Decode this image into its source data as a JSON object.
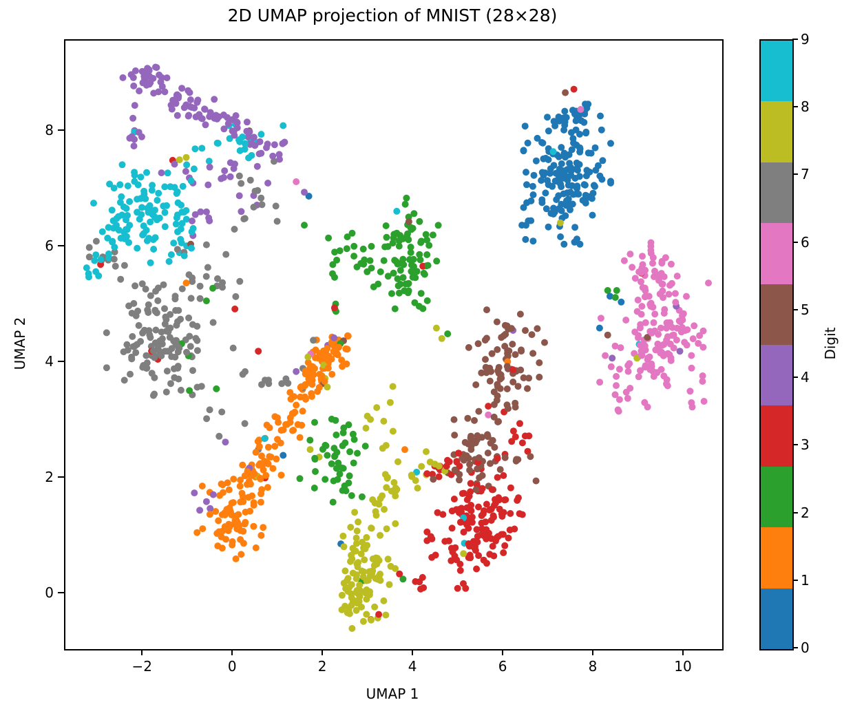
{
  "figure": {
    "title": "2D UMAP projection of MNIST (28×28)",
    "xlabel": "UMAP 1",
    "ylabel": "UMAP 2",
    "colorbar_label": "Digit"
  },
  "chart_data": {
    "type": "scatter",
    "title": "2D UMAP projection of MNIST (28×28)",
    "xlabel": "UMAP 1",
    "ylabel": "UMAP 2",
    "xlim": [
      -3.73,
      10.84
    ],
    "ylim": [
      -0.95,
      9.57
    ],
    "xticks": [
      -2,
      0,
      2,
      4,
      6,
      8,
      10
    ],
    "yticks": [
      0,
      2,
      4,
      6,
      8
    ],
    "grid": false,
    "marker_diameter_px": 10,
    "legend_position": "colorbar-right",
    "colorbar": {
      "label": "Digit",
      "ticks": [
        0,
        1,
        2,
        3,
        4,
        5,
        6,
        7,
        8,
        9
      ],
      "orientation": "vertical",
      "value_range": [
        0,
        9
      ]
    },
    "classes": [
      {
        "digit": 0,
        "color": "#1f77b4"
      },
      {
        "digit": 1,
        "color": "#ff7f0e"
      },
      {
        "digit": 2,
        "color": "#2ca02c"
      },
      {
        "digit": 3,
        "color": "#d62728"
      },
      {
        "digit": 4,
        "color": "#9467bd"
      },
      {
        "digit": 5,
        "color": "#8c564b"
      },
      {
        "digit": 6,
        "color": "#e377c2"
      },
      {
        "digit": 7,
        "color": "#7f7f7f"
      },
      {
        "digit": 8,
        "color": "#bcbd22"
      },
      {
        "digit": 9,
        "color": "#17becf"
      }
    ],
    "clusters": [
      {
        "digit": 4,
        "shape": "line",
        "from": [
          -2.1,
          9.0
        ],
        "to": [
          -0.15,
          8.15
        ],
        "jitter": [
          0.18,
          0.13
        ],
        "n": 65
      },
      {
        "digit": 4,
        "shape": "blob",
        "center": [
          -1.95,
          8.95
        ],
        "sigma": [
          0.22,
          0.1
        ],
        "n": 10
      },
      {
        "digit": 4,
        "shape": "line",
        "from": [
          -2.2,
          8.3
        ],
        "to": [
          -2.15,
          7.65
        ],
        "jitter": [
          0.08,
          0.1
        ],
        "n": 9
      },
      {
        "digit": 4,
        "shape": "line",
        "from": [
          -0.1,
          8.15
        ],
        "to": [
          1.1,
          7.72
        ],
        "jitter": [
          0.16,
          0.12
        ],
        "n": 28
      },
      {
        "digit": 4,
        "shape": "blob",
        "center": [
          -0.45,
          7.3
        ],
        "sigma": [
          0.5,
          0.22
        ],
        "n": 15
      },
      {
        "digit": 4,
        "shape": "blob",
        "center": [
          -0.6,
          6.6
        ],
        "sigma": [
          0.3,
          0.2
        ],
        "n": 6
      },
      {
        "digit": 4,
        "shape": "blob",
        "center": [
          0.55,
          6.95
        ],
        "sigma": [
          0.25,
          0.25
        ],
        "n": 5
      },
      {
        "digit": 9,
        "shape": "blob",
        "center": [
          -2.0,
          6.55
        ],
        "sigma": [
          0.48,
          0.38
        ],
        "n": 100
      },
      {
        "digit": 9,
        "shape": "blob",
        "center": [
          0.15,
          7.82
        ],
        "sigma": [
          0.3,
          0.18
        ],
        "n": 18
      },
      {
        "digit": 9,
        "shape": "blob",
        "center": [
          -0.9,
          7.3
        ],
        "sigma": [
          0.3,
          0.18
        ],
        "n": 9
      },
      {
        "digit": 9,
        "shape": "line",
        "from": [
          -3.25,
          5.6
        ],
        "to": [
          -2.55,
          6.15
        ],
        "jitter": [
          0.1,
          0.12
        ],
        "n": 10
      },
      {
        "digit": 9,
        "shape": "blob",
        "center": [
          -1.2,
          6.0
        ],
        "sigma": [
          0.2,
          0.2
        ],
        "n": 8
      },
      {
        "digit": 7,
        "shape": "blob",
        "center": [
          -1.75,
          4.4
        ],
        "sigma": [
          0.5,
          0.42
        ],
        "n": 115
      },
      {
        "digit": 7,
        "shape": "blob",
        "center": [
          -0.6,
          5.35
        ],
        "sigma": [
          0.38,
          0.3
        ],
        "n": 20
      },
      {
        "digit": 7,
        "shape": "blob",
        "center": [
          -2.8,
          5.8
        ],
        "sigma": [
          0.28,
          0.22
        ],
        "n": 12
      },
      {
        "digit": 7,
        "shape": "line",
        "from": [
          -1.35,
          3.9
        ],
        "to": [
          -0.2,
          2.85
        ],
        "jitter": [
          0.15,
          0.15
        ],
        "n": 9
      },
      {
        "digit": 7,
        "shape": "line",
        "from": [
          -0.35,
          4.15
        ],
        "to": [
          1.6,
          3.45
        ],
        "jitter": [
          0.2,
          0.16
        ],
        "n": 10
      },
      {
        "digit": 7,
        "shape": "blob",
        "center": [
          0.4,
          6.9
        ],
        "sigma": [
          0.3,
          0.42
        ],
        "n": 14
      },
      {
        "digit": 1,
        "shape": "blob",
        "center": [
          -0.08,
          1.3
        ],
        "sigma": [
          0.32,
          0.3
        ],
        "n": 70
      },
      {
        "digit": 1,
        "shape": "line",
        "from": [
          0.2,
          1.75
        ],
        "to": [
          1.3,
          3.2
        ],
        "jitter": [
          0.2,
          0.16
        ],
        "n": 65
      },
      {
        "digit": 1,
        "shape": "line",
        "from": [
          1.3,
          3.25
        ],
        "to": [
          2.35,
          4.35
        ],
        "jitter": [
          0.17,
          0.13
        ],
        "n": 75
      },
      {
        "digit": 1,
        "shape": "blob",
        "center": [
          2.1,
          4.2
        ],
        "sigma": [
          0.25,
          0.16
        ],
        "n": 18
      },
      {
        "digit": 2,
        "shape": "blob",
        "center": [
          3.95,
          5.9
        ],
        "sigma": [
          0.27,
          0.42
        ],
        "n": 68
      },
      {
        "digit": 2,
        "shape": "blob",
        "center": [
          2.7,
          5.8
        ],
        "sigma": [
          0.38,
          0.26
        ],
        "n": 26
      },
      {
        "digit": 2,
        "shape": "line",
        "from": [
          3.25,
          5.5
        ],
        "to": [
          3.85,
          5.25
        ],
        "jitter": [
          0.12,
          0.12
        ],
        "n": 6
      },
      {
        "digit": 2,
        "shape": "blob",
        "center": [
          4.1,
          5.05
        ],
        "sigma": [
          0.12,
          0.12
        ],
        "n": 4
      },
      {
        "digit": 2,
        "shape": "blob",
        "center": [
          2.35,
          2.4
        ],
        "sigma": [
          0.42,
          0.4
        ],
        "n": 46
      },
      {
        "digit": 2,
        "shape": "blob",
        "center": [
          2.25,
          4.85
        ],
        "sigma": [
          0.1,
          0.15
        ],
        "n": 3
      },
      {
        "digit": 8,
        "shape": "blob",
        "center": [
          2.9,
          0.45
        ],
        "sigma": [
          0.3,
          0.42
        ],
        "n": 80
      },
      {
        "digit": 8,
        "shape": "blob",
        "center": [
          2.72,
          -0.22
        ],
        "sigma": [
          0.18,
          0.2
        ],
        "n": 24
      },
      {
        "digit": 8,
        "shape": "line",
        "from": [
          2.95,
          1.35
        ],
        "to": [
          3.85,
          2.1
        ],
        "jitter": [
          0.2,
          0.17
        ],
        "n": 24
      },
      {
        "digit": 8,
        "shape": "blob",
        "center": [
          3.3,
          2.9
        ],
        "sigma": [
          0.3,
          0.3
        ],
        "n": 10
      },
      {
        "digit": 8,
        "shape": "blob",
        "center": [
          4.3,
          2.25
        ],
        "sigma": [
          0.22,
          0.18
        ],
        "n": 7
      },
      {
        "digit": 3,
        "shape": "blob",
        "center": [
          5.35,
          1.25
        ],
        "sigma": [
          0.46,
          0.5
        ],
        "n": 135
      },
      {
        "digit": 3,
        "shape": "blob",
        "center": [
          4.75,
          2.2
        ],
        "sigma": [
          0.18,
          0.14
        ],
        "n": 10
      },
      {
        "digit": 3,
        "shape": "blob",
        "center": [
          4.1,
          0.18
        ],
        "sigma": [
          0.14,
          0.1
        ],
        "n": 5
      },
      {
        "digit": 3,
        "shape": "blob",
        "center": [
          6.3,
          2.6
        ],
        "sigma": [
          0.18,
          0.25
        ],
        "n": 8
      },
      {
        "digit": 5,
        "shape": "blob",
        "center": [
          6.0,
          3.95
        ],
        "sigma": [
          0.34,
          0.42
        ],
        "n": 75
      },
      {
        "digit": 5,
        "shape": "blob",
        "center": [
          5.35,
          2.45
        ],
        "sigma": [
          0.4,
          0.28
        ],
        "n": 55
      },
      {
        "digit": 5,
        "shape": "blob",
        "center": [
          6.35,
          2.25
        ],
        "sigma": [
          0.18,
          0.18
        ],
        "n": 5
      },
      {
        "digit": 0,
        "shape": "blob",
        "center": [
          7.4,
          7.2
        ],
        "sigma": [
          0.42,
          0.5
        ],
        "n": 150
      },
      {
        "digit": 0,
        "shape": "line",
        "from": [
          7.25,
          8.05
        ],
        "to": [
          7.85,
          8.5
        ],
        "jitter": [
          0.17,
          0.1
        ],
        "n": 26
      },
      {
        "digit": 0,
        "shape": "blob",
        "center": [
          6.55,
          6.5
        ],
        "sigma": [
          0.14,
          0.16
        ],
        "n": 5
      },
      {
        "digit": 6,
        "shape": "blob",
        "center": [
          9.5,
          4.5
        ],
        "sigma": [
          0.45,
          0.55
        ],
        "n": 140
      },
      {
        "digit": 6,
        "shape": "blob",
        "center": [
          9.3,
          5.6
        ],
        "sigma": [
          0.22,
          0.22
        ],
        "n": 20
      },
      {
        "digit": 6,
        "shape": "blob",
        "center": [
          8.6,
          3.6
        ],
        "sigma": [
          0.22,
          0.28
        ],
        "n": 12
      }
    ],
    "singles": [
      [
        0,
        1.1,
        2.4
      ],
      [
        0,
        2.38,
        0.87
      ],
      [
        0,
        1.67,
        6.88
      ],
      [
        0,
        8.12,
        4.6
      ],
      [
        0,
        8.35,
        5.15
      ],
      [
        0,
        8.6,
        5.05
      ],
      [
        1,
        -1.05,
        5.38
      ],
      [
        1,
        3.8,
        2.5
      ],
      [
        1,
        6.08,
        4.02
      ],
      [
        2,
        -0.46,
        5.29
      ],
      [
        2,
        -0.6,
        5.07
      ],
      [
        2,
        1.57,
        6.38
      ],
      [
        2,
        -1.15,
        4.33
      ],
      [
        2,
        -1.0,
        4.12
      ],
      [
        2,
        -0.98,
        3.52
      ],
      [
        2,
        -0.38,
        3.55
      ],
      [
        2,
        2.84,
        0.23
      ],
      [
        2,
        3.76,
        0.26
      ],
      [
        2,
        8.3,
        5.25
      ],
      [
        2,
        8.5,
        5.25
      ],
      [
        2,
        8.47,
        5.13
      ],
      [
        2,
        4.75,
        4.5
      ],
      [
        2,
        2.37,
        4.33
      ],
      [
        3,
        -1.35,
        7.5
      ],
      [
        3,
        -2.95,
        5.7
      ],
      [
        3,
        -1.82,
        4.2
      ],
      [
        3,
        -1.68,
        4.06
      ],
      [
        3,
        0.03,
        4.93
      ],
      [
        3,
        0.55,
        4.2
      ],
      [
        3,
        0.7,
        2.01
      ],
      [
        3,
        2.24,
        4.95
      ],
      [
        3,
        4.2,
        5.67
      ],
      [
        3,
        7.55,
        8.73
      ],
      [
        3,
        9.05,
        5.55
      ],
      [
        3,
        3.68,
        0.35
      ],
      [
        3,
        3.05,
        -0.44
      ],
      [
        3,
        3.22,
        -0.35
      ],
      [
        3,
        5.65,
        3.25
      ],
      [
        3,
        6.0,
        3.15
      ],
      [
        3,
        6.35,
        2.95
      ],
      [
        3,
        6.2,
        3.88
      ],
      [
        4,
        -0.6,
        1.6
      ],
      [
        4,
        -0.75,
        1.45
      ],
      [
        4,
        -0.45,
        1.72
      ],
      [
        4,
        -0.87,
        1.75
      ],
      [
        4,
        -0.52,
        1.48
      ],
      [
        4,
        -0.18,
        2.63
      ],
      [
        4,
        0.35,
        2.18
      ],
      [
        4,
        1.39,
        3.85
      ],
      [
        4,
        2.23,
        4.43
      ],
      [
        4,
        2.09,
        4.3
      ],
      [
        4,
        1.57,
        6.95
      ],
      [
        4,
        9.82,
        4.98
      ],
      [
        4,
        9.9,
        4.2
      ],
      [
        4,
        8.4,
        4.08
      ],
      [
        4,
        6.2,
        4.56
      ],
      [
        4,
        -0.9,
        6.2
      ],
      [
        5,
        0.35,
        8.01
      ],
      [
        5,
        -0.95,
        6.05
      ],
      [
        5,
        2.0,
        3.64
      ],
      [
        5,
        2.44,
        4.38
      ],
      [
        5,
        7.36,
        8.67
      ],
      [
        5,
        8.3,
        4.48
      ],
      [
        5,
        9.18,
        4.44
      ],
      [
        5,
        6.9,
        4.35
      ],
      [
        5,
        3.89,
        6.44
      ],
      [
        6,
        1.39,
        7.13
      ],
      [
        6,
        7.7,
        8.38
      ],
      [
        6,
        5.65,
        3.1
      ],
      [
        6,
        8.8,
        5.88
      ],
      [
        6,
        8.15,
        4.77
      ],
      [
        6,
        1.71,
        4.15
      ],
      [
        7,
        -0.21,
        1.38
      ],
      [
        7,
        -0.26,
        3.15
      ],
      [
        7,
        0.25,
        2.95
      ],
      [
        7,
        0.55,
        2.5
      ],
      [
        7,
        1.77,
        4.39
      ],
      [
        7,
        1.07,
        3.64
      ],
      [
        7,
        0.78,
        3.64
      ],
      [
        8,
        1.65,
        4.1
      ],
      [
        8,
        2.0,
        3.96
      ],
      [
        8,
        2.03,
        3.73
      ],
      [
        8,
        2.08,
        3.58
      ],
      [
        8,
        7.25,
        6.42
      ],
      [
        8,
        -1.2,
        7.51
      ],
      [
        8,
        -1.05,
        7.55
      ],
      [
        8,
        4.5,
        4.6
      ],
      [
        8,
        4.62,
        4.42
      ],
      [
        8,
        1.7,
        2.5
      ],
      [
        8,
        1.9,
        2.37
      ],
      [
        8,
        0.53,
        2.04
      ],
      [
        8,
        5.1,
        0.7
      ],
      [
        8,
        8.95,
        4.08
      ],
      [
        9,
        0.69,
        2.69
      ],
      [
        9,
        4.06,
        2.11
      ],
      [
        9,
        5.12,
        0.88
      ],
      [
        9,
        5.1,
        1.32
      ],
      [
        9,
        9.0,
        4.32
      ],
      [
        9,
        7.09,
        7.65
      ],
      [
        9,
        3.62,
        6.62
      ],
      [
        9,
        1.1,
        8.1
      ],
      [
        9,
        -2.2,
        7.99
      ]
    ]
  }
}
